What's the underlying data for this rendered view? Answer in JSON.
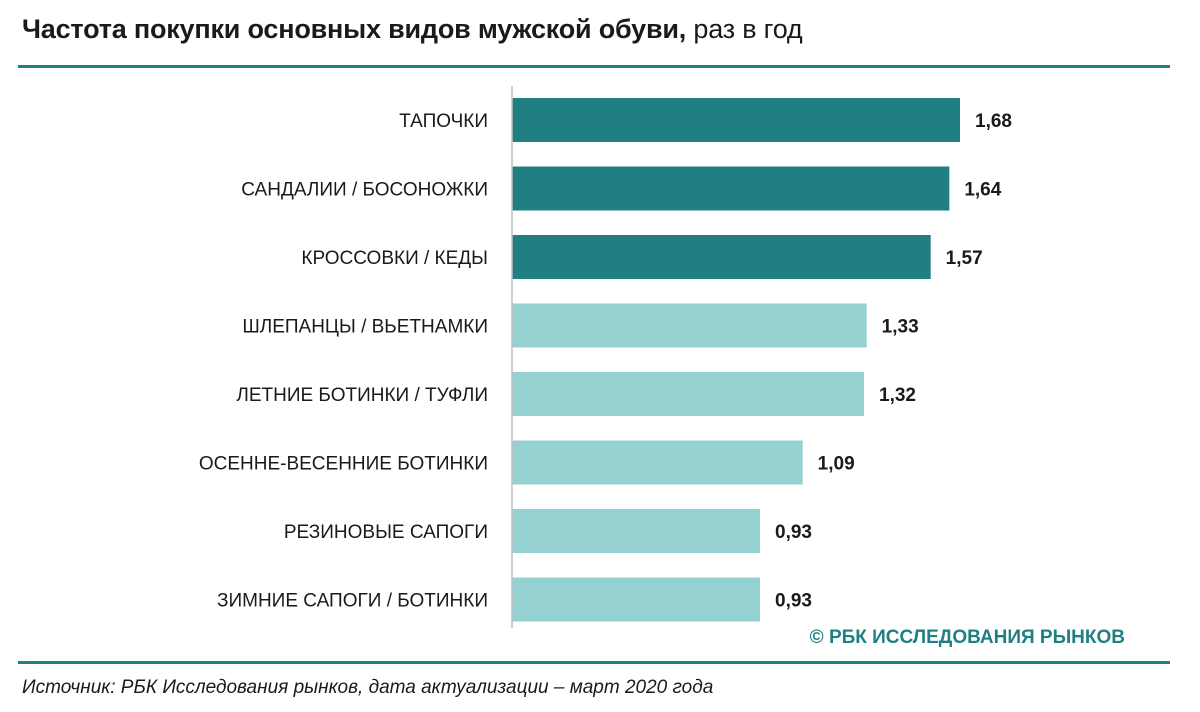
{
  "header": {
    "title_bold": "Частота покупки основных видов мужской обуви,",
    "title_normal": " раз в год"
  },
  "colors": {
    "accent": "#1f7f82",
    "dark_bar": "#1f7f82",
    "light_bar": "#96d1d1",
    "axis": "#bfbfbf",
    "text": "#1a1a1a"
  },
  "chart_data": {
    "type": "bar",
    "orientation": "horizontal",
    "title": "Частота покупки основных видов мужской обуви, раз в год",
    "categories": [
      "ТАПОЧКИ",
      "САНДАЛИИ / БОСОНОЖКИ",
      "КРОССОВКИ / КЕДЫ",
      "ШЛЕПАНЦЫ / ВЬЕТНАМКИ",
      "ЛЕТНИЕ БОТИНКИ / ТУФЛИ",
      "ОСЕННЕ-ВЕСЕННИЕ БОТИНКИ",
      "РЕЗИНОВЫЕ САПОГИ",
      "ЗИМНИЕ САПОГИ / БОТИНКИ"
    ],
    "values": [
      1.68,
      1.64,
      1.57,
      1.33,
      1.32,
      1.09,
      0.93,
      0.93
    ],
    "labels": [
      "1,68",
      "1,64",
      "1,57",
      "1,33",
      "1,32",
      "1,09",
      "0,93",
      "0,93"
    ],
    "highlight": [
      true,
      true,
      true,
      false,
      false,
      false,
      false,
      false
    ],
    "xlim": [
      0,
      1.75
    ],
    "xlabel": "",
    "ylabel": "",
    "grid": false,
    "legend": "none"
  },
  "footer": {
    "copyright": "© РБК ИССЛЕДОВАНИЯ РЫНКОВ",
    "source": "Источник: РБК Исследования рынков, дата актуализации – март 2020 года"
  }
}
